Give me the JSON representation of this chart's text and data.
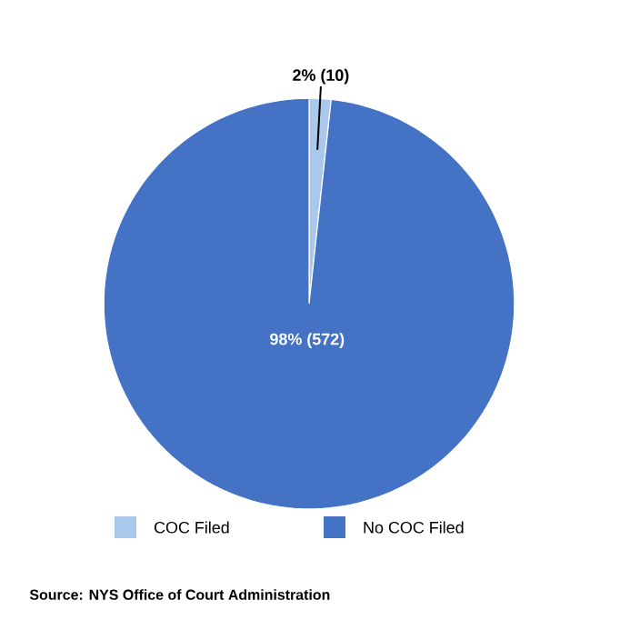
{
  "chart_data": {
    "type": "pie",
    "categories": [
      "COC Filed",
      "No COC Filed"
    ],
    "values": [
      10,
      572
    ],
    "colors": [
      "#a9c8ec",
      "#4472c4"
    ],
    "value_labels": [
      "2% (10)",
      "98% (572)"
    ],
    "legend": "bottom",
    "annotations": [
      "Source: NYS Office of Court Administration"
    ]
  }
}
